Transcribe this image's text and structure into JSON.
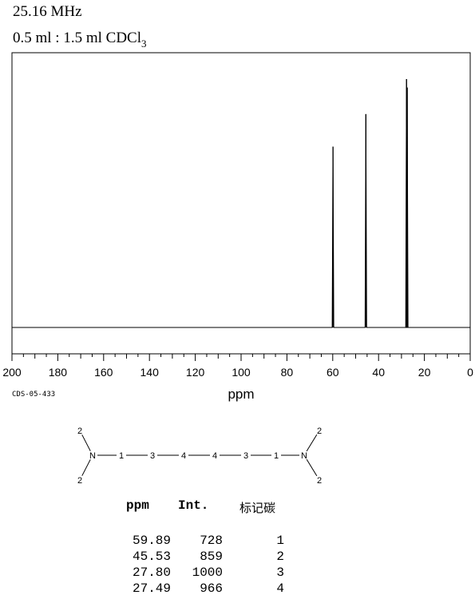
{
  "header": {
    "frequency": "25.16 MHz",
    "solvent_main": "0.5 ml : 1.5 ml CDCl",
    "solvent_sub": "3"
  },
  "spectrum_code": "CDS-05-433",
  "chart_data": {
    "type": "line",
    "title": "",
    "xlabel": "ppm",
    "ylabel": "",
    "xlim": [
      200,
      0
    ],
    "x_reversed": true,
    "x_ticks": [
      200,
      180,
      160,
      140,
      120,
      100,
      80,
      60,
      40,
      20,
      0
    ],
    "ylim": [
      0,
      1100
    ],
    "grid": false,
    "line_color": "#000000",
    "peaks": [
      {
        "ppm": 59.89,
        "intensity": 728
      },
      {
        "ppm": 45.53,
        "intensity": 859
      },
      {
        "ppm": 27.8,
        "intensity": 1000
      },
      {
        "ppm": 27.49,
        "intensity": 966
      }
    ]
  },
  "molecule": {
    "atoms": [
      "2",
      "N",
      "2",
      "1",
      "3",
      "4",
      "4",
      "3",
      "1",
      "N",
      "2",
      "2"
    ]
  },
  "table": {
    "headers": [
      "ppm",
      "Int.",
      "标记碳"
    ],
    "rows": [
      [
        "59.89",
        "728",
        "1"
      ],
      [
        "45.53",
        "859",
        "2"
      ],
      [
        "27.80",
        "1000",
        "3"
      ],
      [
        "27.49",
        "966",
        "4"
      ]
    ]
  }
}
